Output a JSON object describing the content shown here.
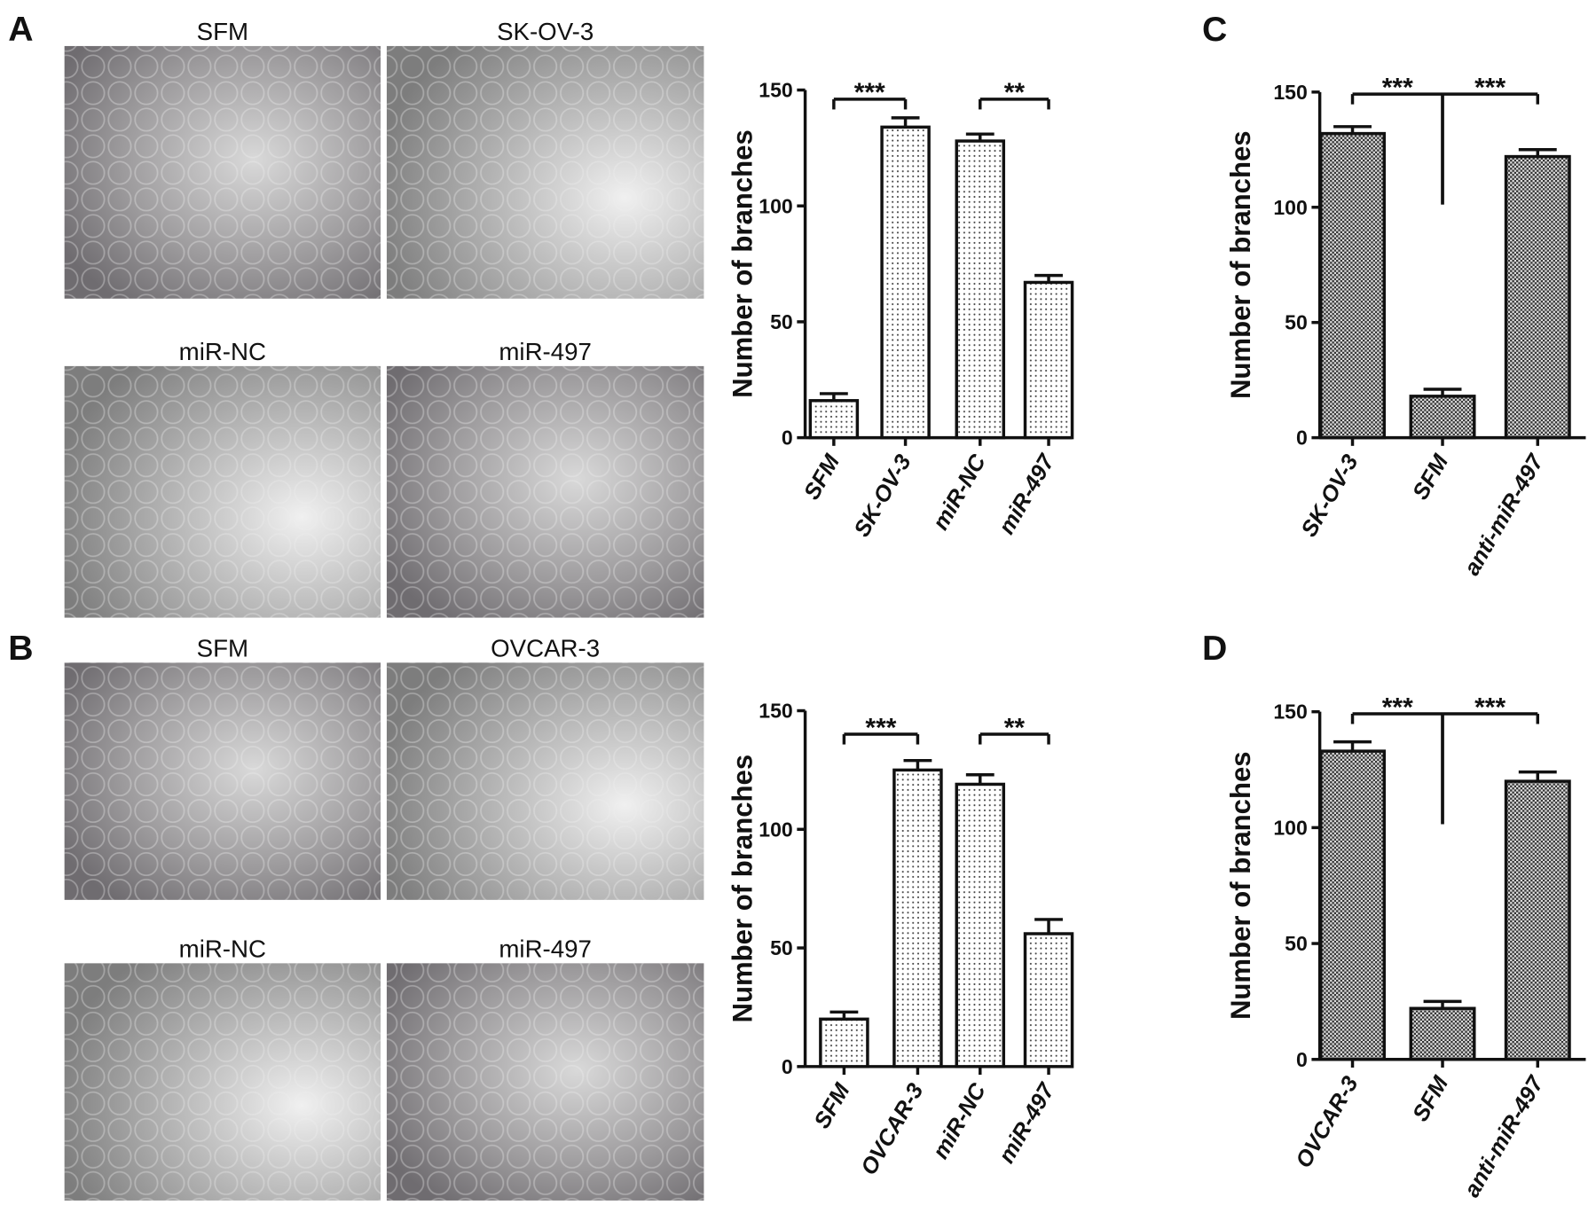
{
  "chart_data": [
    {
      "type": "bar",
      "y_label": "Number of branches",
      "categories": [
        "SFM",
        "SK-OV-3",
        "miR-NC",
        "miR-497"
      ],
      "values": [
        16,
        134,
        128,
        67
      ],
      "errors": [
        3,
        4,
        3,
        3
      ],
      "ylim": [
        0,
        150
      ],
      "yticks": [
        0,
        50,
        100,
        150
      ],
      "fill_pattern": "dots",
      "annotations": [
        {
          "text": "***",
          "groups": [
            0,
            1
          ]
        },
        {
          "text": "**",
          "groups": [
            2,
            3
          ]
        }
      ]
    },
    {
      "type": "bar",
      "y_label": "Number of branches",
      "categories": [
        "SFM",
        "OVCAR-3",
        "miR-NC",
        "miR-497"
      ],
      "values": [
        20,
        125,
        119,
        56
      ],
      "errors": [
        3,
        4,
        4,
        6
      ],
      "ylim": [
        0,
        150
      ],
      "yticks": [
        0,
        50,
        100,
        150
      ],
      "fill_pattern": "dots",
      "annotations": [
        {
          "text": "***",
          "groups": [
            0,
            1
          ]
        },
        {
          "text": "**",
          "groups": [
            2,
            3
          ]
        }
      ]
    },
    {
      "type": "bar",
      "y_label": "Number of branches",
      "categories": [
        "SK-OV-3",
        "SFM",
        "anti-miR-497"
      ],
      "values": [
        132,
        18,
        122
      ],
      "errors": [
        3,
        3,
        3
      ],
      "ylim": [
        0,
        150
      ],
      "yticks": [
        0,
        50,
        100,
        150
      ],
      "fill_pattern": "checker",
      "annotations": [
        {
          "text": "***",
          "groups": [
            0,
            1
          ]
        },
        {
          "text": "***",
          "groups": [
            1,
            2
          ]
        }
      ]
    },
    {
      "type": "bar",
      "y_label": "Number of branches",
      "categories": [
        "OVCAR-3",
        "SFM",
        "anti-miR-497"
      ],
      "values": [
        133,
        22,
        120
      ],
      "errors": [
        4,
        3,
        4
      ],
      "ylim": [
        0,
        150
      ],
      "yticks": [
        0,
        50,
        100,
        150
      ],
      "fill_pattern": "checker",
      "annotations": [
        {
          "text": "***",
          "groups": [
            0,
            1
          ]
        },
        {
          "text": "***",
          "groups": [
            1,
            2
          ]
        }
      ]
    }
  ],
  "panels": [
    {
      "letter": "A",
      "micrographs": [
        "SFM",
        "SK-OV-3",
        "miR-NC",
        "miR-497"
      ]
    },
    {
      "letter": "B",
      "micrographs": [
        "SFM",
        "OVCAR-3",
        "miR-NC",
        "miR-497"
      ]
    },
    {
      "letter": "C"
    },
    {
      "letter": "D"
    }
  ]
}
